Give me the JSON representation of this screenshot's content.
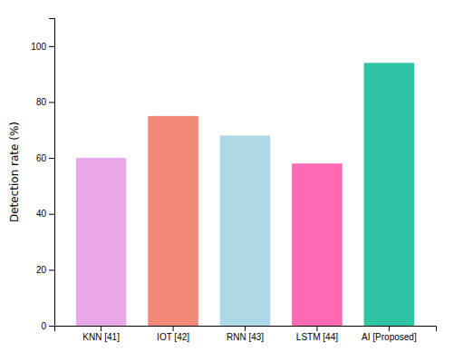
{
  "chart_data": {
    "type": "bar",
    "categories": [
      "KNN [41]",
      "IOT [42]",
      "RNN [43]",
      "LSTM [44]",
      "AI [Proposed]"
    ],
    "values": [
      60,
      75,
      68,
      58,
      94
    ],
    "colors": [
      "#E8A8E8",
      "#F28A7A",
      "#ADD8E6",
      "#FF69B4",
      "#2EC4A5"
    ],
    "ylabel": "Detection rate (%)",
    "ylim": [
      0,
      110
    ],
    "yticks": [
      0,
      20,
      40,
      60,
      80,
      100
    ],
    "grid": false
  }
}
